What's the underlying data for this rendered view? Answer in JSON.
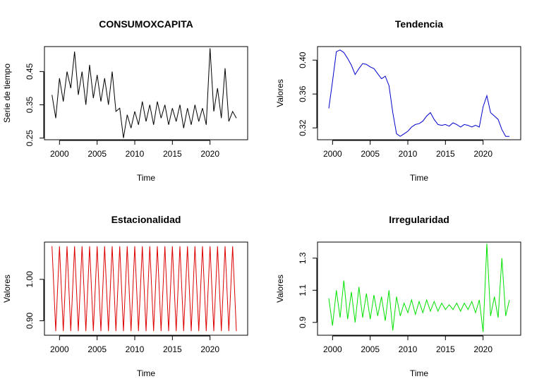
{
  "chart_data": [
    {
      "type": "line",
      "title": "CONSUMOXCAPITA",
      "xlabel": "Time",
      "ylabel": "Serie de tiempo",
      "color": "#000000",
      "xlim": [
        1998.0,
        2025.0
      ],
      "ylim": [
        0.245,
        0.525
      ],
      "xticks": [
        2000,
        2005,
        2010,
        2015,
        2020
      ],
      "xtick_labels": [
        "2000",
        "2005",
        "2010",
        "2015",
        "2020"
      ],
      "yticks": [
        0.25,
        0.35,
        0.45
      ],
      "ytick_labels": [
        "0.25",
        "0.35",
        "0.45"
      ],
      "series": [
        {
          "name": "CONSUMOXCAPITA",
          "x": [
            1999.0,
            1999.5,
            2000.0,
            2000.5,
            2001.0,
            2001.5,
            2002.0,
            2002.5,
            2003.0,
            2003.5,
            2004.0,
            2004.5,
            2005.0,
            2005.5,
            2006.0,
            2006.5,
            2007.0,
            2007.5,
            2008.0,
            2008.5,
            2009.0,
            2009.5,
            2010.0,
            2010.5,
            2011.0,
            2011.5,
            2012.0,
            2012.5,
            2013.0,
            2013.5,
            2014.0,
            2014.5,
            2015.0,
            2015.5,
            2016.0,
            2016.5,
            2017.0,
            2017.5,
            2018.0,
            2018.5,
            2019.0,
            2019.5,
            2020.0,
            2020.5,
            2021.0,
            2021.5,
            2022.0,
            2022.5,
            2023.0,
            2023.5
          ],
          "values": [
            0.38,
            0.31,
            0.43,
            0.36,
            0.45,
            0.4,
            0.51,
            0.38,
            0.45,
            0.35,
            0.47,
            0.37,
            0.44,
            0.36,
            0.43,
            0.35,
            0.45,
            0.33,
            0.34,
            0.25,
            0.32,
            0.28,
            0.33,
            0.29,
            0.36,
            0.3,
            0.35,
            0.29,
            0.36,
            0.31,
            0.35,
            0.29,
            0.34,
            0.3,
            0.35,
            0.28,
            0.34,
            0.29,
            0.35,
            0.3,
            0.34,
            0.29,
            0.52,
            0.33,
            0.4,
            0.31,
            0.46,
            0.3,
            0.33,
            0.31
          ]
        }
      ]
    },
    {
      "type": "line",
      "title": "Tendencia",
      "xlabel": "Time",
      "ylabel": "Valores",
      "color": "#0000CD",
      "xlim": [
        1998.0,
        2025.0
      ],
      "ylim": [
        0.306,
        0.416
      ],
      "xticks": [
        2000,
        2005,
        2010,
        2015,
        2020
      ],
      "xtick_labels": [
        "2000",
        "2005",
        "2010",
        "2015",
        "2020"
      ],
      "yticks": [
        0.32,
        0.36,
        0.4
      ],
      "ytick_labels": [
        "0.32",
        "0.36",
        "0.40"
      ],
      "series": [
        {
          "name": "Tendencia",
          "x": [
            1999.5,
            2000.0,
            2000.5,
            2001.0,
            2001.5,
            2002.0,
            2002.5,
            2003.0,
            2003.5,
            2004.0,
            2004.5,
            2005.0,
            2005.5,
            2006.0,
            2006.5,
            2007.0,
            2007.5,
            2008.0,
            2008.5,
            2009.0,
            2009.5,
            2010.0,
            2010.5,
            2011.0,
            2011.5,
            2012.0,
            2012.5,
            2013.0,
            2013.5,
            2014.0,
            2014.5,
            2015.0,
            2015.5,
            2016.0,
            2016.5,
            2017.0,
            2017.5,
            2018.0,
            2018.5,
            2019.0,
            2019.5,
            2020.0,
            2020.5,
            2021.0,
            2021.5,
            2022.0,
            2022.5,
            2023.0,
            2023.5
          ],
          "values": [
            0.343,
            0.375,
            0.41,
            0.412,
            0.409,
            0.402,
            0.394,
            0.383,
            0.39,
            0.396,
            0.395,
            0.392,
            0.39,
            0.384,
            0.378,
            0.381,
            0.37,
            0.338,
            0.313,
            0.31,
            0.313,
            0.316,
            0.321,
            0.324,
            0.325,
            0.328,
            0.334,
            0.338,
            0.33,
            0.324,
            0.323,
            0.324,
            0.322,
            0.326,
            0.324,
            0.321,
            0.324,
            0.323,
            0.321,
            0.323,
            0.321,
            0.345,
            0.358,
            0.338,
            0.334,
            0.33,
            0.318,
            0.31,
            0.31
          ]
        }
      ]
    },
    {
      "type": "line",
      "title": "Estacionalidad",
      "xlabel": "Time",
      "ylabel": "Valores",
      "color": "#DD0000",
      "xlim": [
        1998.0,
        2025.0
      ],
      "ylim": [
        0.865,
        1.09
      ],
      "xticks": [
        2000,
        2005,
        2010,
        2015,
        2020
      ],
      "xtick_labels": [
        "2000",
        "2005",
        "2010",
        "2015",
        "2020"
      ],
      "yticks": [
        0.9,
        1.0
      ],
      "ytick_labels": [
        "0.90",
        "1.00"
      ],
      "series": [
        {
          "name": "Estacionalidad",
          "x": [
            1999.0,
            1999.5,
            2000.0,
            2000.5,
            2001.0,
            2001.5,
            2002.0,
            2002.5,
            2003.0,
            2003.5,
            2004.0,
            2004.5,
            2005.0,
            2005.5,
            2006.0,
            2006.5,
            2007.0,
            2007.5,
            2008.0,
            2008.5,
            2009.0,
            2009.5,
            2010.0,
            2010.5,
            2011.0,
            2011.5,
            2012.0,
            2012.5,
            2013.0,
            2013.5,
            2014.0,
            2014.5,
            2015.0,
            2015.5,
            2016.0,
            2016.5,
            2017.0,
            2017.5,
            2018.0,
            2018.5,
            2019.0,
            2019.5,
            2020.0,
            2020.5,
            2021.0,
            2021.5,
            2022.0,
            2022.5,
            2023.0,
            2023.5
          ],
          "values": [
            1.08,
            0.875,
            1.08,
            0.875,
            1.08,
            0.875,
            1.08,
            0.875,
            1.08,
            0.875,
            1.08,
            0.875,
            1.08,
            0.875,
            1.08,
            0.875,
            1.08,
            0.875,
            1.08,
            0.875,
            1.08,
            0.875,
            1.08,
            0.875,
            1.08,
            0.875,
            1.08,
            0.875,
            1.08,
            0.875,
            1.08,
            0.875,
            1.08,
            0.875,
            1.08,
            0.875,
            1.08,
            0.875,
            1.08,
            0.875,
            1.08,
            0.875,
            1.08,
            0.875,
            1.08,
            0.875,
            1.08,
            0.875,
            1.08,
            0.875
          ]
        }
      ]
    },
    {
      "type": "line",
      "title": "Irregularidad",
      "xlabel": "Time",
      "ylabel": "Valores",
      "color": "#00E000",
      "xlim": [
        1998.0,
        2025.0
      ],
      "ylim": [
        0.82,
        1.4
      ],
      "xticks": [
        2000,
        2005,
        2010,
        2015,
        2020
      ],
      "xtick_labels": [
        "2000",
        "2005",
        "2010",
        "2015",
        "2020"
      ],
      "yticks": [
        0.9,
        1.1,
        1.3
      ],
      "ytick_labels": [
        "0.9",
        "1.1",
        "1.3"
      ],
      "series": [
        {
          "name": "Irregularidad",
          "x": [
            1999.5,
            2000.0,
            2000.5,
            2001.0,
            2001.5,
            2002.0,
            2002.5,
            2003.0,
            2003.5,
            2004.0,
            2004.5,
            2005.0,
            2005.5,
            2006.0,
            2006.5,
            2007.0,
            2007.5,
            2008.0,
            2008.5,
            2009.0,
            2009.5,
            2010.0,
            2010.5,
            2011.0,
            2011.5,
            2012.0,
            2012.5,
            2013.0,
            2013.5,
            2014.0,
            2014.5,
            2015.0,
            2015.5,
            2016.0,
            2016.5,
            2017.0,
            2017.5,
            2018.0,
            2018.5,
            2019.0,
            2019.5,
            2020.0,
            2020.5,
            2021.0,
            2021.5,
            2022.0,
            2022.5,
            2023.0,
            2023.5
          ],
          "values": [
            1.05,
            0.88,
            1.1,
            0.93,
            1.16,
            0.92,
            1.09,
            0.9,
            1.12,
            0.93,
            1.08,
            0.92,
            1.07,
            0.94,
            1.06,
            0.91,
            1.1,
            0.85,
            1.06,
            0.94,
            1.02,
            0.96,
            1.04,
            0.95,
            1.03,
            0.96,
            1.04,
            0.97,
            1.03,
            0.97,
            1.02,
            0.98,
            1.01,
            0.98,
            1.02,
            0.97,
            1.02,
            0.98,
            1.03,
            0.96,
            1.04,
            0.84,
            1.39,
            0.94,
            1.06,
            0.93,
            1.3,
            0.94,
            1.04
          ]
        }
      ]
    }
  ]
}
